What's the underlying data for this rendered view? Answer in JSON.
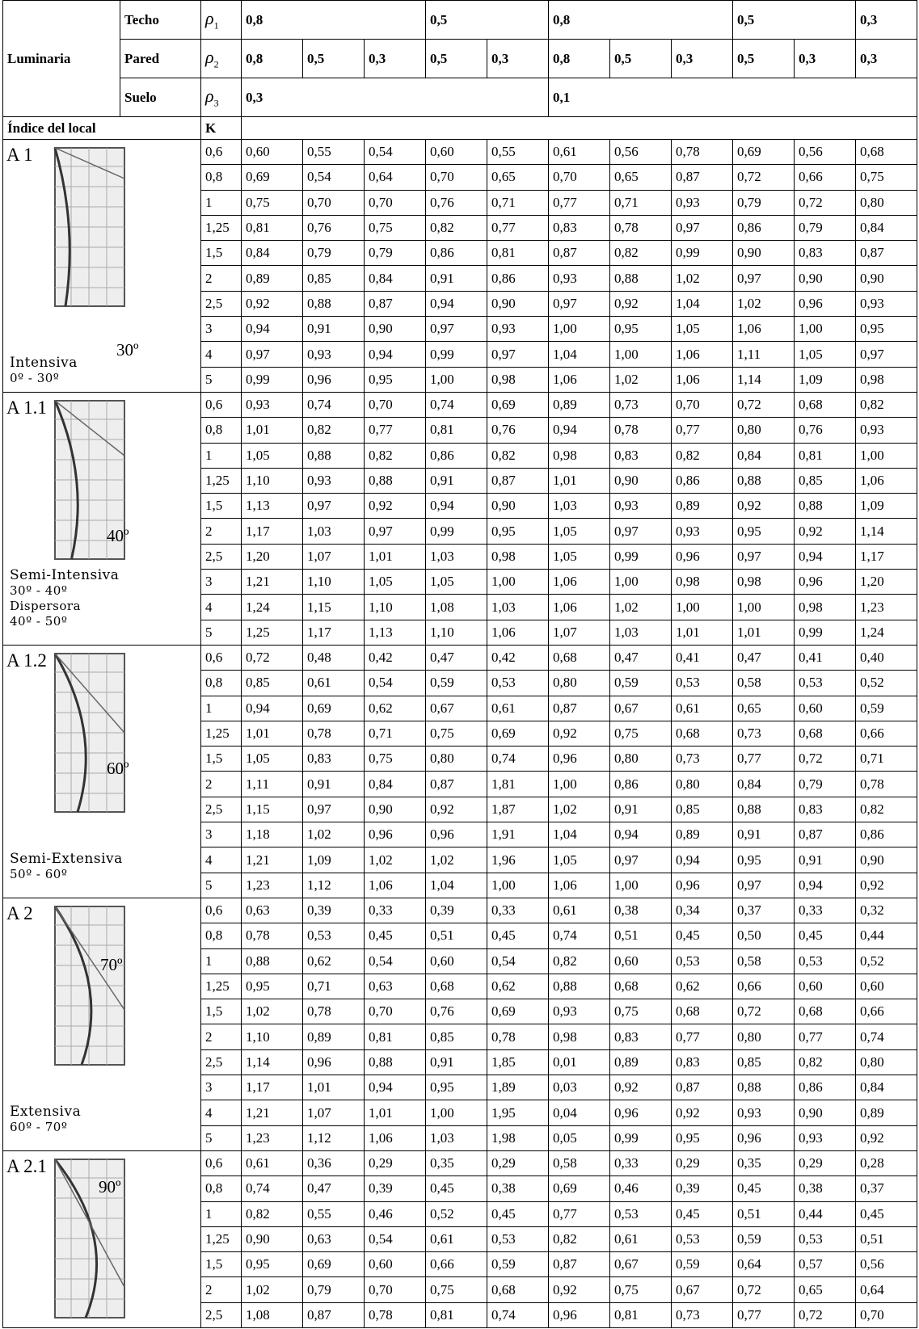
{
  "header": {
    "luminaria": "Luminaria",
    "rows": [
      {
        "label": "Techo",
        "symbol": "ρ",
        "sub": "1",
        "values": [
          "0,8",
          "0,5",
          "0,8",
          "0,5",
          "0,3"
        ]
      },
      {
        "label": "Pared",
        "symbol": "ρ",
        "sub": "2",
        "values": [
          "0,8",
          "0,5",
          "0,3",
          "0,5",
          "0,3",
          "0,8",
          "0,5",
          "0,3",
          "0,5",
          "0,3",
          "0,3"
        ]
      },
      {
        "label": "Suelo",
        "symbol": "ρ",
        "sub": "3",
        "values": [
          "0,3",
          "0,1"
        ]
      }
    ],
    "indice": "Índice del local",
    "k": "K"
  },
  "groups": [
    {
      "code": "A 1",
      "angle": "30º",
      "notes": [
        "Intensiva",
        "0º - 30º"
      ],
      "rows": [
        {
          "k": "0,6",
          "values": [
            "0,60",
            "0,55",
            "0,54",
            "0,60",
            "0,55",
            "0,61",
            "0,56",
            "0,78",
            "0,69",
            "0,56",
            "0,68"
          ]
        },
        {
          "k": "0,8",
          "values": [
            "0,69",
            "0,54",
            "0,64",
            "0,70",
            "0,65",
            "0,70",
            "0,65",
            "0,87",
            "0,72",
            "0,66",
            "0,75"
          ]
        },
        {
          "k": "1",
          "values": [
            "0,75",
            "0,70",
            "0,70",
            "0,76",
            "0,71",
            "0,77",
            "0,71",
            "0,93",
            "0,79",
            "0,72",
            "0,80"
          ]
        },
        {
          "k": "1,25",
          "values": [
            "0,81",
            "0,76",
            "0,75",
            "0,82",
            "0,77",
            "0,83",
            "0,78",
            "0,97",
            "0,86",
            "0,79",
            "0,84"
          ]
        },
        {
          "k": "1,5",
          "values": [
            "0,84",
            "0,79",
            "0,79",
            "0,86",
            "0,81",
            "0,87",
            "0,82",
            "0,99",
            "0,90",
            "0,83",
            "0,87"
          ]
        },
        {
          "k": "2",
          "values": [
            "0,89",
            "0,85",
            "0,84",
            "0,91",
            "0,86",
            "0,93",
            "0,88",
            "1,02",
            "0,97",
            "0,90",
            "0,90"
          ]
        },
        {
          "k": "2,5",
          "values": [
            "0,92",
            "0,88",
            "0,87",
            "0,94",
            "0,90",
            "0,97",
            "0,92",
            "1,04",
            "1,02",
            "0,96",
            "0,93"
          ]
        },
        {
          "k": "3",
          "values": [
            "0,94",
            "0,91",
            "0,90",
            "0,97",
            "0,93",
            "1,00",
            "0,95",
            "1,05",
            "1,06",
            "1,00",
            "0,95"
          ]
        },
        {
          "k": "4",
          "values": [
            "0,97",
            "0,93",
            "0,94",
            "0,99",
            "0,97",
            "1,04",
            "1,00",
            "1,06",
            "1,11",
            "1,05",
            "0,97"
          ]
        },
        {
          "k": "5",
          "values": [
            "0,99",
            "0,96",
            "0,95",
            "1,00",
            "0,98",
            "1,06",
            "1,02",
            "1,06",
            "1,14",
            "1,09",
            "0,98"
          ]
        }
      ]
    },
    {
      "code": "A 1.1",
      "angle": "40º",
      "notes": [
        "Semi-Intensiva",
        "30º - 40º",
        "Dispersora",
        "40º - 50º"
      ],
      "rows": [
        {
          "k": "0,6",
          "values": [
            "0,93",
            "0,74",
            "0,70",
            "0,74",
            "0,69",
            "0,89",
            "0,73",
            "0,70",
            "0,72",
            "0,68",
            "0,82"
          ]
        },
        {
          "k": "0,8",
          "values": [
            "1,01",
            "0,82",
            "0,77",
            "0,81",
            "0,76",
            "0,94",
            "0,78",
            "0,77",
            "0,80",
            "0,76",
            "0,93"
          ]
        },
        {
          "k": "1",
          "values": [
            "1,05",
            "0,88",
            "0,82",
            "0,86",
            "0,82",
            "0,98",
            "0,83",
            "0,82",
            "0,84",
            "0,81",
            "1,00"
          ]
        },
        {
          "k": "1,25",
          "values": [
            "1,10",
            "0,93",
            "0,88",
            "0,91",
            "0,87",
            "1,01",
            "0,90",
            "0,86",
            "0,88",
            "0,85",
            "1,06"
          ]
        },
        {
          "k": "1,5",
          "values": [
            "1,13",
            "0,97",
            "0,92",
            "0,94",
            "0,90",
            "1,03",
            "0,93",
            "0,89",
            "0,92",
            "0,88",
            "1,09"
          ]
        },
        {
          "k": "2",
          "values": [
            "1,17",
            "1,03",
            "0,97",
            "0,99",
            "0,95",
            "1,05",
            "0,97",
            "0,93",
            "0,95",
            "0,92",
            "1,14"
          ]
        },
        {
          "k": "2,5",
          "values": [
            "1,20",
            "1,07",
            "1,01",
            "1,03",
            "0,98",
            "1,05",
            "0,99",
            "0,96",
            "0,97",
            "0,94",
            "1,17"
          ]
        },
        {
          "k": "3",
          "values": [
            "1,21",
            "1,10",
            "1,05",
            "1,05",
            "1,00",
            "1,06",
            "1,00",
            "0,98",
            "0,98",
            "0,96",
            "1,20"
          ]
        },
        {
          "k": "4",
          "values": [
            "1,24",
            "1,15",
            "1,10",
            "1,08",
            "1,03",
            "1,06",
            "1,02",
            "1,00",
            "1,00",
            "0,98",
            "1,23"
          ]
        },
        {
          "k": "5",
          "values": [
            "1,25",
            "1,17",
            "1,13",
            "1,10",
            "1,06",
            "1,07",
            "1,03",
            "1,01",
            "1,01",
            "0,99",
            "1,24"
          ]
        }
      ]
    },
    {
      "code": "A 1.2",
      "angle": "60º",
      "notes": [
        "Semi-Extensiva",
        "50º - 60º"
      ],
      "rows": [
        {
          "k": "0,6",
          "values": [
            "0,72",
            "0,48",
            "0,42",
            "0,47",
            "0,42",
            "0,68",
            "0,47",
            "0,41",
            "0,47",
            "0,41",
            "0,40"
          ]
        },
        {
          "k": "0,8",
          "values": [
            "0,85",
            "0,61",
            "0,54",
            "0,59",
            "0,53",
            "0,80",
            "0,59",
            "0,53",
            "0,58",
            "0,53",
            "0,52"
          ]
        },
        {
          "k": "1",
          "values": [
            "0,94",
            "0,69",
            "0,62",
            "0,67",
            "0,61",
            "0,87",
            "0,67",
            "0,61",
            "0,65",
            "0,60",
            "0,59"
          ]
        },
        {
          "k": "1,25",
          "values": [
            "1,01",
            "0,78",
            "0,71",
            "0,75",
            "0,69",
            "0,92",
            "0,75",
            "0,68",
            "0,73",
            "0,68",
            "0,66"
          ]
        },
        {
          "k": "1,5",
          "values": [
            "1,05",
            "0,83",
            "0,75",
            "0,80",
            "0,74",
            "0,96",
            "0,80",
            "0,73",
            "0,77",
            "0,72",
            "0,71"
          ]
        },
        {
          "k": "2",
          "values": [
            "1,11",
            "0,91",
            "0,84",
            "0,87",
            "1,81",
            "1,00",
            "0,86",
            "0,80",
            "0,84",
            "0,79",
            "0,78"
          ]
        },
        {
          "k": "2,5",
          "values": [
            "1,15",
            "0,97",
            "0,90",
            "0,92",
            "1,87",
            "1,02",
            "0,91",
            "0,85",
            "0,88",
            "0,83",
            "0,82"
          ]
        },
        {
          "k": "3",
          "values": [
            "1,18",
            "1,02",
            "0,96",
            "0,96",
            "1,91",
            "1,04",
            "0,94",
            "0,89",
            "0,91",
            "0,87",
            "0,86"
          ]
        },
        {
          "k": "4",
          "values": [
            "1,21",
            "1,09",
            "1,02",
            "1,02",
            "1,96",
            "1,05",
            "0,97",
            "0,94",
            "0,95",
            "0,91",
            "0,90"
          ]
        },
        {
          "k": "5",
          "values": [
            "1,23",
            "1,12",
            "1,06",
            "1,04",
            "1,00",
            "1,06",
            "1,00",
            "0,96",
            "0,97",
            "0,94",
            "0,92"
          ]
        }
      ]
    },
    {
      "code": "A 2",
      "angle": "70º",
      "notes": [
        "Extensiva",
        "60º - 70º"
      ],
      "rows": [
        {
          "k": "0,6",
          "values": [
            "0,63",
            "0,39",
            "0,33",
            "0,39",
            "0,33",
            "0,61",
            "0,38",
            "0,34",
            "0,37",
            "0,33",
            "0,32"
          ]
        },
        {
          "k": "0,8",
          "values": [
            "0,78",
            "0,53",
            "0,45",
            "0,51",
            "0,45",
            "0,74",
            "0,51",
            "0,45",
            "0,50",
            "0,45",
            "0,44"
          ]
        },
        {
          "k": "1",
          "values": [
            "0,88",
            "0,62",
            "0,54",
            "0,60",
            "0,54",
            "0,82",
            "0,60",
            "0,53",
            "0,58",
            "0,53",
            "0,52"
          ]
        },
        {
          "k": "1,25",
          "values": [
            "0,95",
            "0,71",
            "0,63",
            "0,68",
            "0,62",
            "0,88",
            "0,68",
            "0,62",
            "0,66",
            "0,60",
            "0,60"
          ]
        },
        {
          "k": "1,5",
          "values": [
            "1,02",
            "0,78",
            "0,70",
            "0,76",
            "0,69",
            "0,93",
            "0,75",
            "0,68",
            "0,72",
            "0,68",
            "0,66"
          ]
        },
        {
          "k": "2",
          "values": [
            "1,10",
            "0,89",
            "0,81",
            "0,85",
            "0,78",
            "0,98",
            "0,83",
            "0,77",
            "0,80",
            "0,77",
            "0,74"
          ]
        },
        {
          "k": "2,5",
          "values": [
            "1,14",
            "0,96",
            "0,88",
            "0,91",
            "1,85",
            "0,01",
            "0,89",
            "0,83",
            "0,85",
            "0,82",
            "0,80"
          ]
        },
        {
          "k": "3",
          "values": [
            "1,17",
            "1,01",
            "0,94",
            "0,95",
            "1,89",
            "0,03",
            "0,92",
            "0,87",
            "0,88",
            "0,86",
            "0,84"
          ]
        },
        {
          "k": "4",
          "values": [
            "1,21",
            "1,07",
            "1,01",
            "1,00",
            "1,95",
            "0,04",
            "0,96",
            "0,92",
            "0,93",
            "0,90",
            "0,89"
          ]
        },
        {
          "k": "5",
          "values": [
            "1,23",
            "1,12",
            "1,06",
            "1,03",
            "1,98",
            "0,05",
            "0,99",
            "0,95",
            "0,96",
            "0,93",
            "0,92"
          ]
        }
      ]
    },
    {
      "code": "A 2.1",
      "angle": "90º",
      "notes": [],
      "rows": [
        {
          "k": "0,6",
          "values": [
            "0,61",
            "0,36",
            "0,29",
            "0,35",
            "0,29",
            "0,58",
            "0,33",
            "0,29",
            "0,35",
            "0,29",
            "0,28"
          ]
        },
        {
          "k": "0,8",
          "values": [
            "0,74",
            "0,47",
            "0,39",
            "0,45",
            "0,38",
            "0,69",
            "0,46",
            "0,39",
            "0,45",
            "0,38",
            "0,37"
          ]
        },
        {
          "k": "1",
          "values": [
            "0,82",
            "0,55",
            "0,46",
            "0,52",
            "0,45",
            "0,77",
            "0,53",
            "0,45",
            "0,51",
            "0,44",
            "0,45"
          ]
        },
        {
          "k": "1,25",
          "values": [
            "0,90",
            "0,63",
            "0,54",
            "0,61",
            "0,53",
            "0,82",
            "0,61",
            "0,53",
            "0,59",
            "0,53",
            "0,51"
          ]
        },
        {
          "k": "1,5",
          "values": [
            "0,95",
            "0,69",
            "0,60",
            "0,66",
            "0,59",
            "0,87",
            "0,67",
            "0,59",
            "0,64",
            "0,57",
            "0,56"
          ]
        },
        {
          "k": "2",
          "values": [
            "1,02",
            "0,79",
            "0,70",
            "0,75",
            "0,68",
            "0,92",
            "0,75",
            "0,67",
            "0,72",
            "0,65",
            "0,64"
          ]
        },
        {
          "k": "2,5",
          "values": [
            "1,08",
            "0,87",
            "0,78",
            "0,81",
            "0,74",
            "0,96",
            "0,81",
            "0,73",
            "0,77",
            "0,72",
            "0,70"
          ]
        }
      ]
    }
  ]
}
